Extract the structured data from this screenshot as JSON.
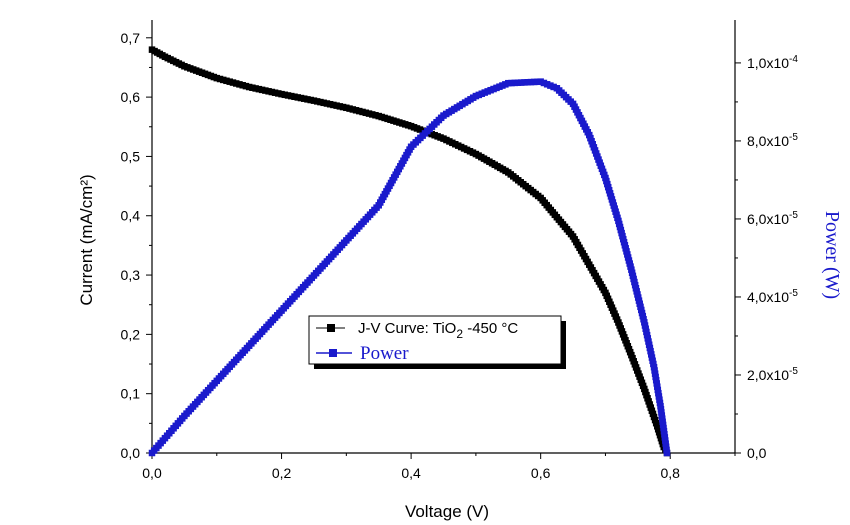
{
  "chart_data": {
    "type": "line",
    "xlabel": "Voltage (V)",
    "ylabel_left": "Current (mA/cm²)",
    "ylabel_right": "Power (W)",
    "xlim": [
      0,
      0.9
    ],
    "ylim_left": [
      0,
      0.73
    ],
    "ylim_right": [
      0,
      0.000111
    ],
    "x_ticks": [
      "0,0",
      "0,2",
      "0,4",
      "0,6",
      "0,8"
    ],
    "y_left_ticks": [
      "0,0",
      "0,1",
      "0,2",
      "0,3",
      "0,4",
      "0,5",
      "0,6",
      "0,7"
    ],
    "y_right_ticks": [
      {
        "mantissa": "0,0",
        "exp": ""
      },
      {
        "mantissa": "2,0x10",
        "exp": "-5"
      },
      {
        "mantissa": "4,0x10",
        "exp": "-5"
      },
      {
        "mantissa": "6,0x10",
        "exp": "-5"
      },
      {
        "mantissa": "8,0x10",
        "exp": "-5"
      },
      {
        "mantissa": "1,0x10",
        "exp": "-4"
      }
    ],
    "legend": {
      "position": "lower-center",
      "entries": [
        {
          "text": "J-V Curve: TiO",
          "subscript": "2",
          "suffix": " -450 °C"
        },
        {
          "text": "Power"
        }
      ]
    },
    "series": [
      {
        "axis": "left",
        "color": "#000000",
        "marker": "square",
        "points": [
          [
            0.0,
            0.68
          ],
          [
            0.02,
            0.668
          ],
          [
            0.05,
            0.652
          ],
          [
            0.1,
            0.632
          ],
          [
            0.15,
            0.617
          ],
          [
            0.2,
            0.605
          ],
          [
            0.25,
            0.594
          ],
          [
            0.3,
            0.582
          ],
          [
            0.35,
            0.568
          ],
          [
            0.4,
            0.551
          ],
          [
            0.45,
            0.53
          ],
          [
            0.5,
            0.504
          ],
          [
            0.55,
            0.473
          ],
          [
            0.6,
            0.43
          ],
          [
            0.65,
            0.365
          ],
          [
            0.7,
            0.27
          ],
          [
            0.72,
            0.22
          ],
          [
            0.74,
            0.165
          ],
          [
            0.76,
            0.108
          ],
          [
            0.78,
            0.045
          ],
          [
            0.79,
            0.01
          ],
          [
            0.795,
            0.0
          ]
        ]
      },
      {
        "axis": "right",
        "color": "#1a1acc",
        "marker": "square",
        "points": [
          [
            0.0,
            0.0
          ],
          [
            0.05,
            9.5e-06
          ],
          [
            0.1,
            1.85e-05
          ],
          [
            0.15,
            2.75e-05
          ],
          [
            0.2,
            3.65e-05
          ],
          [
            0.25,
            4.55e-05
          ],
          [
            0.3,
            5.45e-05
          ],
          [
            0.35,
            6.35e-05
          ],
          [
            0.4,
            7.85e-05
          ],
          [
            0.45,
            8.65e-05
          ],
          [
            0.5,
            9.15e-05
          ],
          [
            0.55,
            9.48e-05
          ],
          [
            0.6,
            9.52e-05
          ],
          [
            0.625,
            9.35e-05
          ],
          [
            0.65,
            8.95e-05
          ],
          [
            0.675,
            8.15e-05
          ],
          [
            0.7,
            7.05e-05
          ],
          [
            0.72,
            5.95e-05
          ],
          [
            0.74,
            4.7e-05
          ],
          [
            0.76,
            3.35e-05
          ],
          [
            0.775,
            2.2e-05
          ],
          [
            0.785,
            1.2e-05
          ],
          [
            0.795,
            0.0
          ]
        ]
      }
    ]
  }
}
